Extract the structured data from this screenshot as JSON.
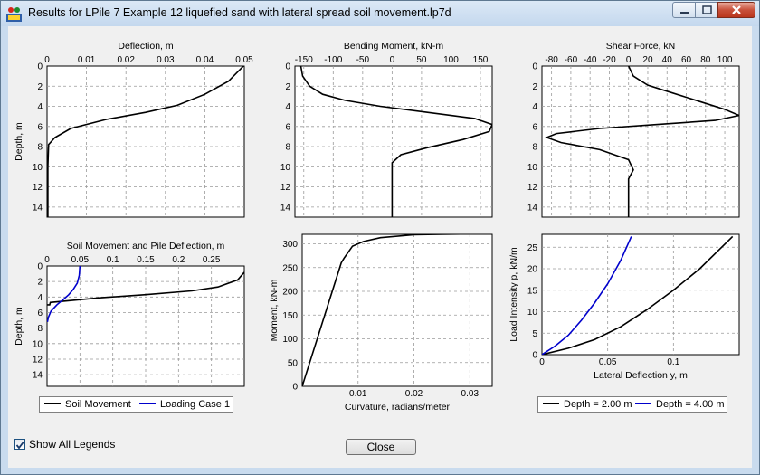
{
  "window": {
    "title": "Results for LPile 7 Example 12 liquefied sand with lateral spread soil movement.lp7d"
  },
  "icons": {
    "app": "lpile-app-icon",
    "minimize": "minimize-icon",
    "maximize": "maximize-icon",
    "close": "close-icon"
  },
  "colors": {
    "series1": "#000000",
    "series2": "#0000cc",
    "grid": "#9a9a9a"
  },
  "chart_data": [
    {
      "type": "line",
      "title": "Deflection, m",
      "ylabel": "Depth, m",
      "xlim": [
        0,
        0.05
      ],
      "ylim": [
        0,
        15
      ],
      "y_inverted": true,
      "x_ticks": [
        "0",
        "0.01",
        "0.02",
        "0.03",
        "0.04",
        "0.05"
      ],
      "y_ticks": [
        "0",
        "2",
        "4",
        "6",
        "8",
        "10",
        "12",
        "14"
      ],
      "grid": true,
      "series": [
        {
          "x": [
            0.0498,
            0.046,
            0.04,
            0.033,
            0.025,
            0.015,
            0.006,
            0.002,
            0.0004,
            0.0002,
            0.0002
          ],
          "y": [
            0,
            1.5,
            2.8,
            3.9,
            4.6,
            5.3,
            6.2,
            7.1,
            7.8,
            10,
            15
          ]
        }
      ]
    },
    {
      "type": "line",
      "title": "Bending Moment, kN-m",
      "xlim": [
        -165,
        170
      ],
      "ylim": [
        0,
        15
      ],
      "y_inverted": true,
      "x_ticks": [
        "-150",
        "-100",
        "-50",
        "0",
        "50",
        "100",
        "150"
      ],
      "y_ticks": [
        "0",
        "2",
        "4",
        "6",
        "8",
        "10",
        "12",
        "14"
      ],
      "grid": true,
      "series": [
        {
          "x": [
            -155,
            -152,
            -140,
            -118,
            -80,
            -20,
            60,
            140,
            170,
            165,
            120,
            60,
            15,
            0,
            0,
            0
          ],
          "y": [
            0,
            1.0,
            2.0,
            2.8,
            3.4,
            4.0,
            4.6,
            5.2,
            5.8,
            6.5,
            7.3,
            8.1,
            8.8,
            9.6,
            12,
            15
          ]
        }
      ]
    },
    {
      "type": "line",
      "title": "Shear Force, kN",
      "xlim": [
        -90,
        115
      ],
      "ylim": [
        0,
        15
      ],
      "y_inverted": true,
      "x_ticks": [
        "-80",
        "-60",
        "-40",
        "-20",
        "0",
        "20",
        "40",
        "60",
        "80",
        "100"
      ],
      "y_ticks": [
        "0",
        "2",
        "4",
        "6",
        "8",
        "10",
        "12",
        "14"
      ],
      "grid": true,
      "series": [
        {
          "x": [
            0,
            5,
            20,
            40,
            60,
            80,
            100,
            115,
            90,
            30,
            -30,
            -75,
            -85,
            -70,
            -30,
            0,
            5,
            0,
            0
          ],
          "y": [
            0,
            1.0,
            1.9,
            2.5,
            3.1,
            3.7,
            4.3,
            4.9,
            5.4,
            5.8,
            6.2,
            6.7,
            7.1,
            7.6,
            8.3,
            9.3,
            10.3,
            11.2,
            15
          ]
        }
      ]
    },
    {
      "type": "line",
      "title": "Soil Movement and Pile Deflection, m",
      "ylabel": "Depth, m",
      "xlim": [
        0,
        0.3
      ],
      "ylim": [
        0,
        15.5
      ],
      "y_inverted": true,
      "x_ticks": [
        "0",
        "0.05",
        "0.1",
        "0.15",
        "0.2",
        "0.25"
      ],
      "y_ticks": [
        "0",
        "2",
        "4",
        "6",
        "8",
        "10",
        "12",
        "14"
      ],
      "grid": true,
      "series": [
        {
          "name": "Soil Movement",
          "x": [
            0.3,
            0.29,
            0.26,
            0.22,
            0.15,
            0.08,
            0.005,
            0.004,
            0
          ],
          "y": [
            0.8,
            1.8,
            2.7,
            3.2,
            3.7,
            4.1,
            4.7,
            5.0,
            5.0
          ]
        },
        {
          "name": "Loading Case 1",
          "x": [
            0.05,
            0.049,
            0.046,
            0.04,
            0.033,
            0.025,
            0.015,
            0.006,
            0.002,
            0.0005
          ],
          "y": [
            0,
            1.2,
            2.2,
            3.0,
            3.7,
            4.3,
            5.0,
            5.8,
            6.6,
            7.2
          ]
        }
      ]
    },
    {
      "type": "line",
      "xlabel": "Curvature, radians/meter",
      "ylabel": "Moment, kN-m",
      "xlim": [
        0,
        0.034
      ],
      "ylim": [
        0,
        320
      ],
      "x_ticks": [
        "0.01",
        "0.02",
        "0.03"
      ],
      "y_ticks": [
        "0",
        "50",
        "100",
        "150",
        "200",
        "250",
        "300"
      ],
      "grid": true,
      "series": [
        {
          "x": [
            0,
            0.007,
            0.0075,
            0.009,
            0.011,
            0.014,
            0.02,
            0.025,
            0.03
          ],
          "y": [
            0,
            260,
            270,
            295,
            305,
            313,
            319,
            320,
            321
          ]
        }
      ]
    },
    {
      "type": "line",
      "xlabel": "Lateral Deflection y, m",
      "ylabel": "Load Intensity p, kN/m",
      "xlim": [
        0,
        0.15
      ],
      "ylim": [
        0,
        28
      ],
      "x_ticks": [
        "0",
        "0.05",
        "0.1"
      ],
      "y_ticks": [
        "0",
        "5",
        "10",
        "15",
        "20",
        "25"
      ],
      "grid": true,
      "series": [
        {
          "name": "Depth = 2.00 m",
          "x": [
            0,
            0.02,
            0.04,
            0.06,
            0.08,
            0.1,
            0.12,
            0.145
          ],
          "y": [
            0,
            1.5,
            3.5,
            6.5,
            10.5,
            15,
            20,
            27.5
          ]
        },
        {
          "name": "Depth = 4.00 m",
          "x": [
            0,
            0.01,
            0.02,
            0.03,
            0.04,
            0.05,
            0.06,
            0.068
          ],
          "y": [
            0,
            2,
            4.5,
            8,
            12,
            16.5,
            22,
            27.5
          ]
        }
      ]
    }
  ],
  "legends": {
    "lower_left": [
      "Soil Movement",
      "Loading Case 1"
    ],
    "lower_right": [
      "Depth = 2.00 m",
      "Depth = 4.00 m"
    ]
  },
  "controls": {
    "show_all_legends_label": "Show All Legends",
    "show_all_legends_checked": true,
    "close_label": "Close"
  }
}
